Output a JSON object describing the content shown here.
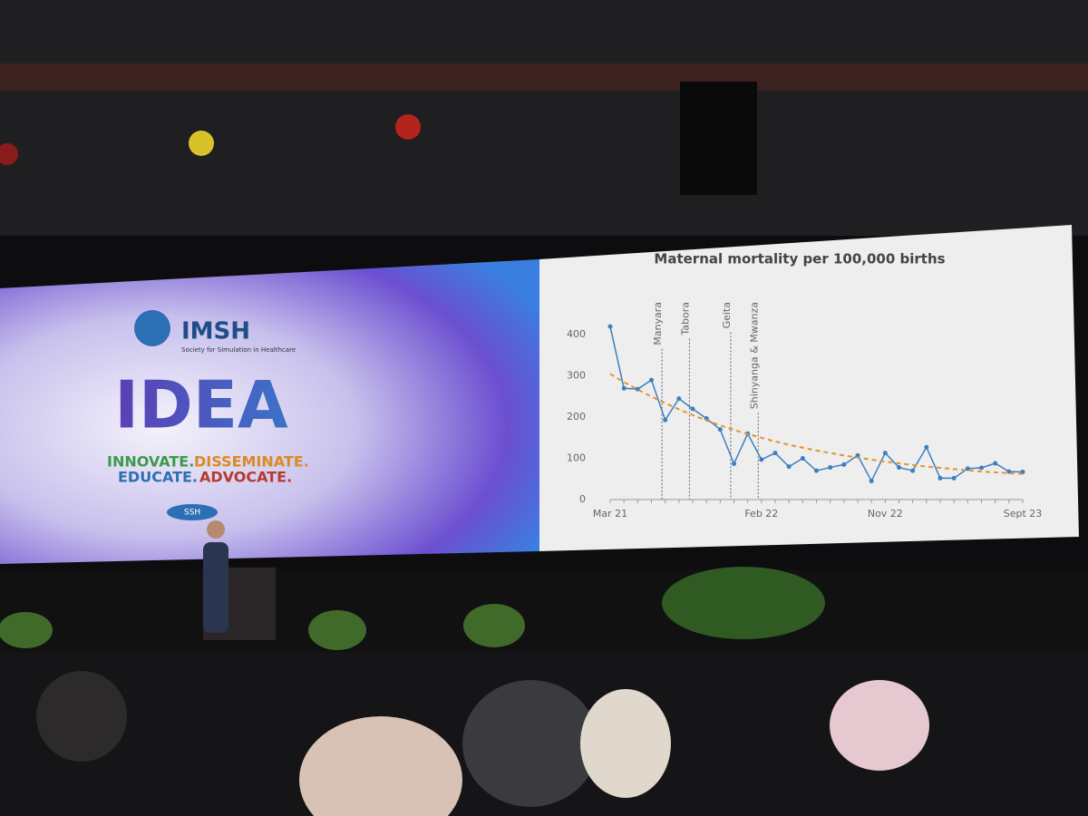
{
  "slide": {
    "logo": "IMSH",
    "logo_subtitle": "Society for Simulation in Healthcare",
    "headline": "IDEA",
    "tagline": [
      "INNOVATE.",
      "DISSEMINATE.",
      "EDUCATE.",
      "ADVOCATE."
    ],
    "badge": "SSH"
  },
  "chart_data": {
    "type": "line",
    "title": "Maternal mortality per 100,000 births",
    "categories": [
      "Mar 21",
      null,
      null,
      null,
      null,
      null,
      null,
      null,
      null,
      null,
      null,
      "Feb 22",
      null,
      null,
      null,
      null,
      null,
      null,
      null,
      null,
      "Nov 22",
      null,
      null,
      null,
      null,
      null,
      null,
      null,
      null,
      null,
      "Sept 23"
    ],
    "series": [
      {
        "color": "#3d7fc1",
        "values": [
          420,
          270,
          268,
          290,
          193,
          245,
          220,
          197,
          170,
          87,
          160,
          97,
          113,
          80,
          100,
          70,
          78,
          85,
          107,
          45,
          113,
          78,
          70,
          127,
          52,
          52,
          75,
          77,
          88,
          68,
          67
        ],
        "dashed": false
      },
      {
        "color": "#e0962a",
        "values": [
          305,
          285,
          267,
          250,
          234,
          219,
          205,
          192,
          180,
          169,
          159,
          150,
          141,
          133,
          126,
          119,
          113,
          107,
          102,
          97,
          92,
          88,
          84,
          80,
          77,
          74,
          71,
          68,
          66,
          64,
          62
        ],
        "dashed": true
      }
    ],
    "annotations": [
      {
        "text": "Manyara",
        "x": 3.5
      },
      {
        "text": "Tabora",
        "x": 5.5
      },
      {
        "text": "Geita",
        "x": 8.5
      },
      {
        "text": "Shinyanga & Mwanza",
        "x": 10.5
      }
    ],
    "ylim": [
      0,
      440
    ],
    "yticks": [
      0,
      100,
      200,
      300,
      400
    ],
    "grid": false
  }
}
